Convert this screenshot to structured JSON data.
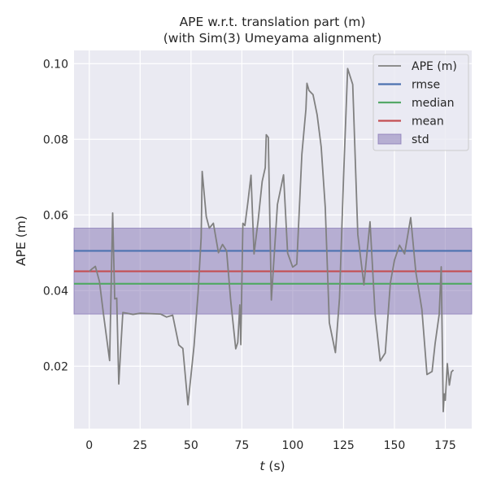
{
  "chart_data": {
    "type": "line",
    "title_line1": "APE w.r.t. translation part (m)",
    "title_line2": "(with Sim(3) Umeyama alignment)",
    "xlabel_var": "t",
    "xlabel_unit": " (s)",
    "ylabel": "APE (m)",
    "xlim": [
      -7.5,
      188
    ],
    "ylim": [
      0.0035,
      0.1035
    ],
    "xticks": [
      0,
      25,
      50,
      75,
      100,
      125,
      150,
      175
    ],
    "xtick_labels": [
      "0",
      "25",
      "50",
      "75",
      "100",
      "125",
      "150",
      "175"
    ],
    "yticks": [
      0.02,
      0.04,
      0.06,
      0.08,
      0.1
    ],
    "ytick_labels": [
      "0.02",
      "0.04",
      "0.06",
      "0.08",
      "0.10"
    ],
    "grid": true,
    "legend_position": "top-right",
    "legend": [
      "APE (m)",
      "rmse",
      "median",
      "mean",
      "std"
    ],
    "colors": {
      "ape": "#808080",
      "rmse": "#4c72b0",
      "median": "#55a868",
      "mean": "#c44e52",
      "std": "#8172b2",
      "axes_bg": "#eaeaf2",
      "grid": "#ffffff"
    },
    "stats": {
      "rmse": 0.0505,
      "median": 0.0418,
      "mean": 0.0451,
      "std_low": 0.0338,
      "std_high": 0.0565
    },
    "series": [
      {
        "name": "APE (m)",
        "x": [
          0,
          1.5,
          3,
          5,
          7,
          10,
          11.5,
          12.5,
          13.5,
          14.5,
          15.5,
          16.5,
          18.5,
          21.5,
          25,
          30,
          35,
          38,
          41,
          44,
          46,
          48.5,
          51.5,
          53.5,
          55,
          55.5,
          57.5,
          59,
          61,
          63.5,
          65.5,
          67.5,
          69.5,
          72,
          73,
          74,
          74.5,
          75.5,
          76.5,
          78,
          79.5,
          81,
          83,
          85,
          86.5,
          87,
          88,
          89.5,
          92.5,
          95.5,
          97.5,
          100,
          102,
          104.5,
          106.5,
          107,
          108,
          110,
          112,
          114,
          116,
          118,
          121,
          123,
          125,
          127,
          129.5,
          132,
          135,
          138,
          140.5,
          143,
          145.5,
          148,
          150,
          152.5,
          155,
          158,
          160.5,
          163.5,
          166,
          168.5,
          170,
          172,
          173,
          174,
          174.5,
          175,
          176,
          177,
          178,
          179
        ],
        "y": [
          0.0451,
          0.0458,
          0.0464,
          0.0424,
          0.0337,
          0.0215,
          0.0605,
          0.0378,
          0.038,
          0.0153,
          0.025,
          0.0342,
          0.034,
          0.0337,
          0.034,
          0.0339,
          0.0338,
          0.033,
          0.0335,
          0.0256,
          0.0247,
          0.0098,
          0.0254,
          0.0395,
          0.054,
          0.0715,
          0.0596,
          0.0565,
          0.0578,
          0.05,
          0.0522,
          0.0505,
          0.0375,
          0.0246,
          0.0263,
          0.0362,
          0.0257,
          0.0578,
          0.0572,
          0.0635,
          0.0705,
          0.0497,
          0.0585,
          0.0689,
          0.0725,
          0.0812,
          0.0805,
          0.0375,
          0.0628,
          0.0706,
          0.0499,
          0.0462,
          0.047,
          0.076,
          0.088,
          0.0948,
          0.0929,
          0.0918,
          0.0865,
          0.078,
          0.062,
          0.0315,
          0.0236,
          0.038,
          0.07,
          0.0987,
          0.0945,
          0.0548,
          0.0415,
          0.0582,
          0.0338,
          0.0214,
          0.0235,
          0.042,
          0.048,
          0.052,
          0.0497,
          0.0593,
          0.045,
          0.035,
          0.0178,
          0.0186,
          0.026,
          0.0337,
          0.0463,
          0.008,
          0.0127,
          0.011,
          0.0207,
          0.015,
          0.0185,
          0.019
        ]
      }
    ]
  }
}
